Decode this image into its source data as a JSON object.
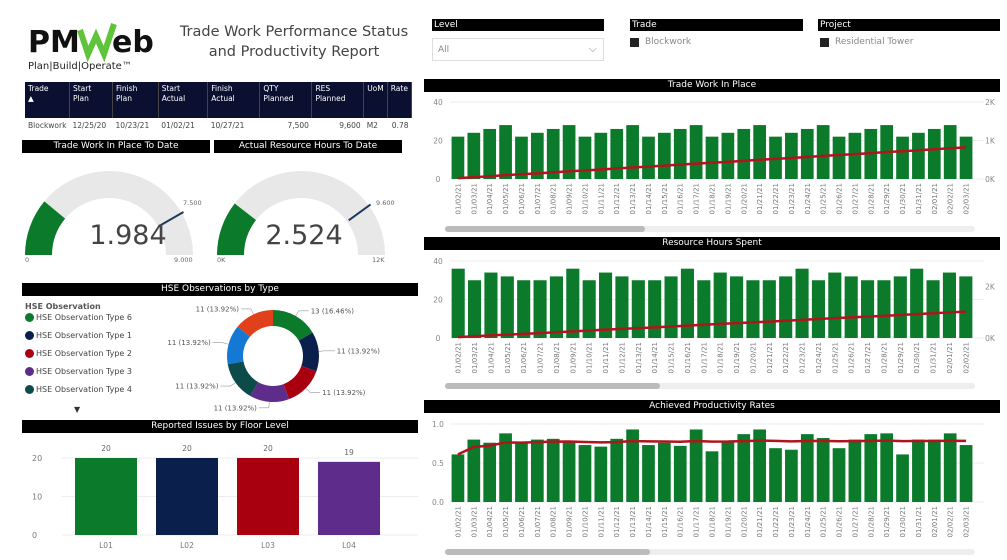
{
  "logo": {
    "text": "PMWeb",
    "tagline": "Plan|Build|Operate™"
  },
  "title": "Trade Work Performance Status and Productivity Report",
  "table": {
    "headers": [
      "Trade",
      "Start Plan",
      "Finish Plan",
      "Start Actual",
      "Finish Actual",
      "QTY Planned",
      "RES Planned",
      "UoM",
      "Rate"
    ],
    "rows": [
      [
        "Blockwork",
        "12/25/20",
        "10/23/21",
        "01/02/21",
        "10/27/21",
        "7,500",
        "9,600",
        "M2",
        "0.78"
      ]
    ]
  },
  "filters": {
    "level": {
      "label": "Level",
      "value": "All"
    },
    "trade": {
      "label": "Trade",
      "value": "Blockwork"
    },
    "project": {
      "label": "Project",
      "value": "Residential Tower"
    }
  },
  "gauges": [
    {
      "title": "Trade Work In Place To Date",
      "value": 1984,
      "value_label": "1.984",
      "min": 0,
      "max": 9000,
      "target": 7500,
      "min_label": "0",
      "max_label": "9.000",
      "target_label": "7.500"
    },
    {
      "title": "Actual Resource Hours To Date",
      "value": 2524,
      "value_label": "2.524",
      "min": 0,
      "max": 12000,
      "target": 9600,
      "min_label": "0K",
      "max_label": "12K",
      "target_label": "9.600"
    }
  ],
  "colors": {
    "green": "#0b7a2a",
    "line": "#b0141c",
    "navy": "#0b1f4d",
    "red": "#a8000e",
    "purple": "#5e2d8c",
    "blue": "#1479d4",
    "orange": "#e0401a",
    "teal": "#0d4a4a"
  },
  "chart_data": [
    {
      "type": "donut",
      "title": "HSE Observations by Type",
      "legend_title": "HSE Observation",
      "legend": [
        "HSE Observation Type 6",
        "HSE Observation Type 1",
        "HSE Observation Type 2",
        "HSE Observation Type 3",
        "HSE Observation Type 4"
      ],
      "slices": [
        {
          "name": "HSE Observation Type 6",
          "value": 13,
          "label": "13 (16.46%)",
          "color": "#0b7a2a"
        },
        {
          "name": "HSE Observation Type 1",
          "value": 11,
          "label": "11 (13.92%)",
          "color": "#0b1f4d"
        },
        {
          "name": "HSE Observation Type 2",
          "value": 11,
          "label": "11 (13.92%)",
          "color": "#a8000e"
        },
        {
          "name": "HSE Observation Type 3",
          "value": 11,
          "label": "11 (13.92%)",
          "color": "#5e2d8c"
        },
        {
          "name": "HSE Observation Type 4",
          "value": 11,
          "label": "11 (13.92%)",
          "color": "#0d4a4a"
        },
        {
          "name": "",
          "value": 11,
          "label": "11 (13.92%)",
          "color": "#1479d4"
        },
        {
          "name": "",
          "value": 11,
          "label": "11 (13.92%)",
          "color": "#e0401a"
        }
      ]
    },
    {
      "type": "bar",
      "title": "Reported Issues by Floor Level",
      "categories": [
        "L01",
        "L02",
        "L03",
        "L04"
      ],
      "values": [
        20,
        20,
        20,
        19
      ],
      "colors": [
        "#0b7a2a",
        "#0b1f4d",
        "#a8000e",
        "#5e2d8c"
      ],
      "ylim": [
        0,
        20
      ],
      "yticks": [
        "0",
        "10",
        "20"
      ],
      "data_labels": true
    },
    {
      "type": "bar+line",
      "title": "Trade Work In Place",
      "categories": [
        "01/02/21",
        "01/03/21",
        "01/04/21",
        "01/05/21",
        "01/06/21",
        "01/07/21",
        "01/08/21",
        "01/09/21",
        "01/10/21",
        "01/11/21",
        "01/12/21",
        "01/13/21",
        "01/14/21",
        "01/15/21",
        "01/16/21",
        "01/17/21",
        "01/18/21",
        "01/19/21",
        "01/20/21",
        "01/21/21",
        "01/22/21",
        "01/23/21",
        "01/24/21",
        "01/25/21",
        "01/26/21",
        "01/27/21",
        "01/28/21",
        "01/29/21",
        "01/30/21",
        "01/31/21",
        "02/01/21",
        "02/02/21",
        "02/03/21"
      ],
      "values": [
        22,
        24,
        26,
        28,
        22,
        24,
        26,
        28,
        22,
        24,
        26,
        28,
        22,
        24,
        26,
        28,
        22,
        24,
        26,
        28,
        22,
        24,
        26,
        28,
        22,
        24,
        26,
        28,
        22,
        24,
        26,
        28,
        22
      ],
      "line": "cumulative",
      "ylim": [
        0,
        40
      ],
      "yticks": [
        "0",
        "20",
        "40"
      ],
      "y2lim": [
        0,
        2000
      ],
      "y2ticks": [
        "0K",
        "1K",
        "2K"
      ]
    },
    {
      "type": "bar+line",
      "title": "Resource Hours Spent",
      "categories": [
        "01/02/21",
        "01/03/21",
        "01/04/21",
        "01/05/21",
        "01/06/21",
        "01/07/21",
        "01/08/21",
        "01/09/21",
        "01/10/21",
        "01/11/21",
        "01/12/21",
        "01/13/21",
        "01/14/21",
        "01/15/21",
        "01/16/21",
        "01/17/21",
        "01/18/21",
        "01/19/21",
        "01/20/21",
        "01/21/21",
        "01/22/21",
        "01/23/21",
        "01/24/21",
        "01/25/21",
        "01/26/21",
        "01/27/21",
        "01/28/21",
        "01/29/21",
        "01/30/21",
        "01/31/21",
        "02/01/21",
        "02/02/21"
      ],
      "values": [
        36,
        30,
        34,
        32,
        30,
        30,
        32,
        36,
        30,
        34,
        32,
        30,
        30,
        32,
        36,
        30,
        34,
        32,
        30,
        30,
        32,
        36,
        30,
        34,
        32,
        30,
        30,
        32,
        36,
        30,
        34,
        32
      ],
      "line": "cumulative",
      "ylim": [
        0,
        40
      ],
      "yticks": [
        "0",
        "20",
        "40"
      ],
      "y2lim": [
        0,
        3000
      ],
      "y2ticks": [
        "0K",
        "2K"
      ]
    },
    {
      "type": "bar+line",
      "title": "Achieved Productivity Rates",
      "categories": [
        "01/02/21",
        "01/03/21",
        "01/04/21",
        "01/05/21",
        "01/06/21",
        "01/07/21",
        "01/08/21",
        "01/09/21",
        "01/10/21",
        "01/11/21",
        "01/12/21",
        "01/13/21",
        "01/14/21",
        "01/15/21",
        "01/16/21",
        "01/17/21",
        "01/18/21",
        "01/19/21",
        "01/20/21",
        "01/21/21",
        "01/22/21",
        "01/23/21",
        "01/24/21",
        "01/25/21",
        "01/26/21",
        "01/27/21",
        "01/28/21",
        "01/29/21",
        "01/30/21",
        "01/31/21",
        "02/01/21",
        "02/02/21",
        "02/03/21"
      ],
      "values": [
        0.61,
        0.8,
        0.76,
        0.88,
        0.76,
        0.8,
        0.81,
        0.78,
        0.73,
        0.71,
        0.81,
        0.93,
        0.73,
        0.76,
        0.72,
        0.93,
        0.65,
        0.78,
        0.87,
        0.93,
        0.69,
        0.67,
        0.87,
        0.82,
        0.69,
        0.8,
        0.87,
        0.88,
        0.61,
        0.8,
        0.8,
        0.88,
        0.73
      ],
      "line": "running average",
      "ylim": [
        0,
        1
      ],
      "yticks": [
        "0.0",
        "0.5",
        "1.0"
      ]
    }
  ]
}
